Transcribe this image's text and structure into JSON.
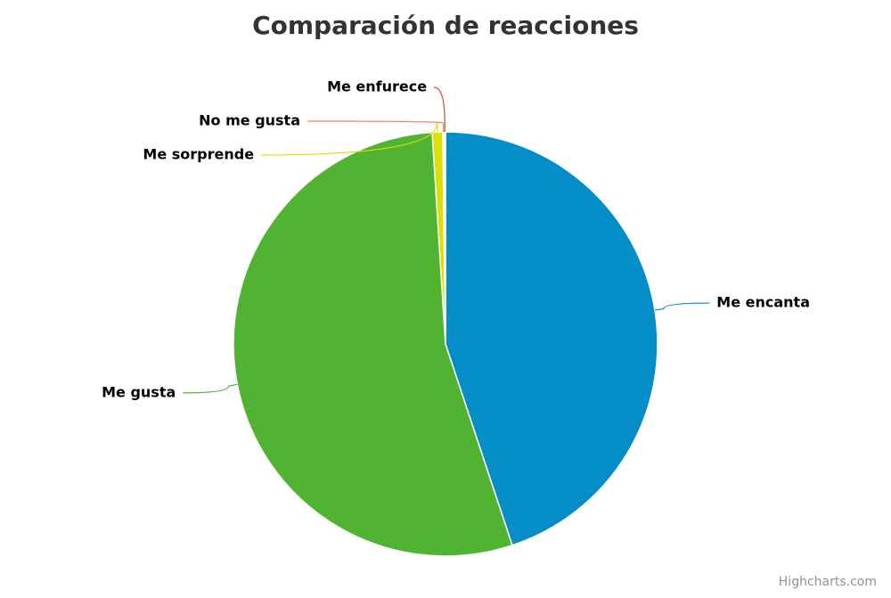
{
  "chart_data": {
    "type": "pie",
    "title": "Comparación de reacciones",
    "categories": [
      "Me encanta",
      "Me gusta",
      "Me sorprende",
      "No me gusta",
      "Me enfurece"
    ],
    "values": [
      44.9,
      54.1,
      0.8,
      0.1,
      0.1
    ],
    "colors": [
      "#058dc7",
      "#50b432",
      "#dddf00",
      "#f0865a",
      "#c8501e"
    ],
    "credits": "Highcharts.com"
  }
}
